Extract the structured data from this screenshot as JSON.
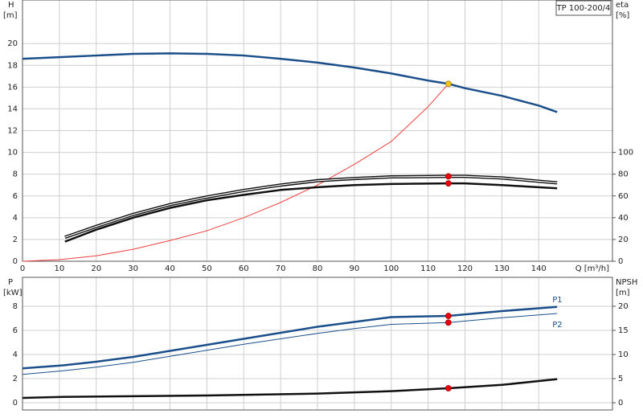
{
  "chart_data": [
    {
      "type": "line",
      "title": "TP 100-200/4",
      "ylabel": "H",
      "yunit": "[m]",
      "y2label": "eta",
      "y2unit": "[%]",
      "xlabel": "Q [m³/h]",
      "xlim": [
        0,
        160
      ],
      "xticks": [
        0,
        10,
        20,
        30,
        40,
        50,
        60,
        70,
        80,
        90,
        100,
        110,
        120,
        130,
        140
      ],
      "ylim": [
        0,
        24
      ],
      "yticks": [
        0,
        2,
        4,
        6,
        8,
        10,
        12,
        14,
        16,
        18,
        20
      ],
      "y2lim": [
        0,
        240
      ],
      "y2ticks": [
        0,
        20,
        40,
        60,
        80,
        100
      ],
      "grid": true,
      "series": [
        {
          "color": "#1a4f8b",
          "style": "thick",
          "x": [
            0,
            10,
            20,
            30,
            40,
            50,
            60,
            70,
            80,
            90,
            100,
            110,
            115.5,
            120,
            130,
            140,
            145
          ],
          "values": [
            18.6,
            18.75,
            18.9,
            19.05,
            19.1,
            19.05,
            18.9,
            18.6,
            18.25,
            17.8,
            17.25,
            16.6,
            16.3,
            15.9,
            15.2,
            14.3,
            13.7
          ]
        },
        {
          "color": "#f04040",
          "style": "thin",
          "x": [
            0,
            10,
            20,
            30,
            40,
            50,
            60,
            70,
            80,
            90,
            100,
            110,
            115.5
          ],
          "values": [
            0,
            0.15,
            0.5,
            1.1,
            1.9,
            2.8,
            4.0,
            5.4,
            7.0,
            8.9,
            11.0,
            14.2,
            16.3
          ]
        },
        {
          "color": "#111111",
          "style": "double",
          "axis": "y2",
          "x": [
            11.5,
            20,
            30,
            40,
            50,
            60,
            70,
            80,
            90,
            100,
            115.5,
            120,
            130,
            145
          ],
          "values": [
            22,
            32,
            43,
            52,
            59,
            65,
            70,
            74,
            76,
            77.5,
            78,
            78,
            76.5,
            72
          ]
        },
        {
          "color": "#111111",
          "style": "thick",
          "axis": "y2",
          "x": [
            11.5,
            20,
            30,
            40,
            50,
            60,
            70,
            80,
            90,
            100,
            115.5,
            120,
            130,
            145
          ],
          "values": [
            18,
            29,
            40,
            49,
            56,
            61,
            65.5,
            68,
            70,
            71,
            71.5,
            71.5,
            70,
            67
          ]
        },
        {
          "color": "#f5c518",
          "style": "dots",
          "x": [
            115.5
          ],
          "values": [
            16.3
          ]
        },
        {
          "color": "#e8000b",
          "style": "dots",
          "axis": "y2",
          "x": [
            115.5,
            115.5
          ],
          "values": [
            78,
            71.5
          ]
        }
      ]
    },
    {
      "type": "line",
      "ylabel": "P",
      "yunit": "[kW]",
      "y2label": "NPSH",
      "y2unit": "[m]",
      "xlim": [
        0,
        160
      ],
      "ylim": [
        -0.6,
        10.4
      ],
      "yticks": [
        0,
        2,
        4,
        6,
        8
      ],
      "y2lim": [
        -1.5,
        26
      ],
      "y2ticks": [
        0,
        5,
        10,
        15,
        20
      ],
      "grid": true,
      "series": [
        {
          "name": "P1",
          "color": "#1a4f8b",
          "style": "thick",
          "x": [
            0,
            11,
            20,
            30,
            40,
            50,
            60,
            70,
            80,
            90,
            100,
            115.5,
            130,
            145
          ],
          "values": [
            2.85,
            3.1,
            3.4,
            3.8,
            4.3,
            4.8,
            5.3,
            5.8,
            6.3,
            6.7,
            7.1,
            7.2,
            7.6,
            7.95
          ]
        },
        {
          "name": "P2",
          "color": "#1a4f8b",
          "style": "thin",
          "x": [
            0,
            11,
            20,
            30,
            40,
            50,
            60,
            70,
            80,
            90,
            100,
            115.5,
            130,
            145
          ],
          "values": [
            2.35,
            2.65,
            2.95,
            3.35,
            3.85,
            4.35,
            4.85,
            5.3,
            5.75,
            6.15,
            6.5,
            6.65,
            7.05,
            7.4
          ]
        },
        {
          "color": "#111111",
          "style": "thick",
          "axis": "y2",
          "x": [
            0,
            11,
            50,
            80,
            100,
            115.5,
            130,
            145
          ],
          "values": [
            1.0,
            1.2,
            1.5,
            1.9,
            2.4,
            3.0,
            3.7,
            4.9
          ]
        },
        {
          "color": "#e8000b",
          "style": "dots",
          "x": [
            115.5,
            115.5
          ],
          "values": [
            7.2,
            6.65
          ]
        },
        {
          "color": "#e8000b",
          "style": "dots",
          "axis": "y2",
          "x": [
            115.5
          ],
          "values": [
            3.0
          ]
        }
      ]
    }
  ]
}
